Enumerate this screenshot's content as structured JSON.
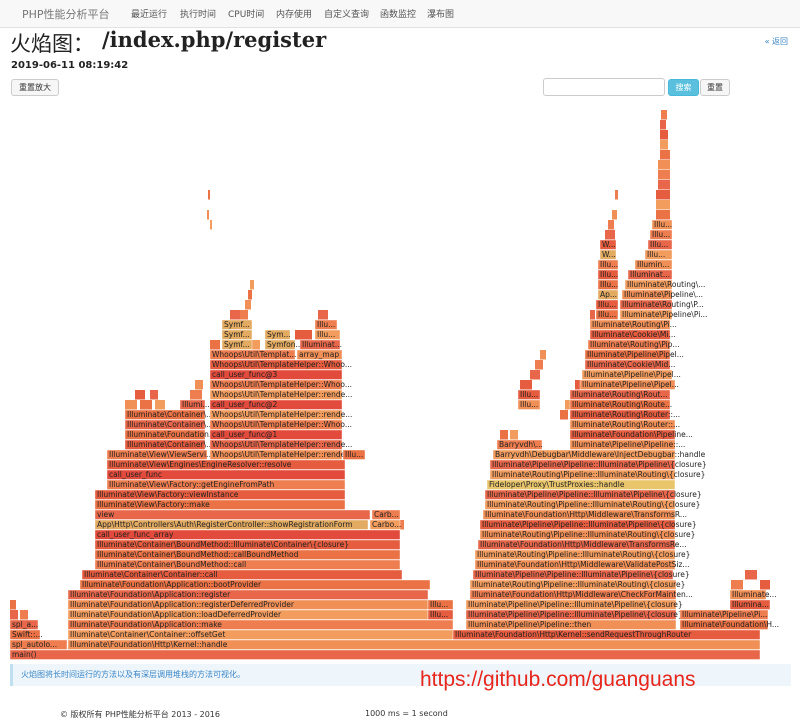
{
  "navbar": {
    "brand": "PHP性能分析平台",
    "items": [
      "最近运行",
      "执行时间",
      "CPU时间",
      "内存使用",
      "自定义查询",
      "函数监控",
      "瀑布图"
    ]
  },
  "header": {
    "title_prefix": "火焰图：",
    "title_path": "/index.php/register",
    "back_link": "« 返回",
    "date": "2019-06-11 08:19:42"
  },
  "toolbar": {
    "zoom_reset": "重置放大",
    "search": "搜索",
    "reset": "重置"
  },
  "flame": {
    "frames": [
      "main()",
      "spl_autolo...",
      "Illuminate\\Foundation\\Http\\Kernel::handle",
      "Swift::...",
      "Illuminate\\Container\\Container::offsetGet",
      "Illuminate\\Foundation\\Http\\Kernel::sendRequestThroughRouter",
      "spl_a...",
      "Illuminate\\Foundation\\Application::make",
      "Illuminate\\Pipeline\\Pipeline::then",
      "Illuminate\\Foundation\\H...",
      "Illuminate\\Foundation\\Application::loadDeferredProvider",
      "Illu...",
      "Illuminate\\Pipeline\\Pipeline::Illuminate\\Pipeline\\{closure}",
      "Illuminate\\Pipeline\\Pi...",
      "Illuminate\\Foundation\\Application::registerDeferredProvider",
      "Illu...",
      "Illuminate\\Pipeline\\Pipeline::Illuminate\\Pipeline\\{closure}",
      "Illumina...",
      "Illuminate\\Foundation\\Application::register",
      "Illuminate\\Foundation\\Http\\Middleware\\CheckForMainten...",
      "Illuminate...",
      "Illuminate\\Foundation\\Application::bootProvider",
      "Illuminate\\Routing\\Pipeline::Illuminate\\Routing\\{closure}",
      "Illuminate\\Container\\Container::call",
      "Illuminate\\Pipeline\\Pipeline::Illuminate\\Pipeline\\{closure}",
      "Illuminate\\Container\\BoundMethod::call",
      "Illuminate\\Foundation\\Http\\Middleware\\ValidatePostSiz...",
      "Illuminate\\Container\\BoundMethod::callBoundMethod",
      "Illuminate\\Routing\\Pipeline::Illuminate\\Routing\\{closure}",
      "Illuminate\\Container\\BoundMethod::Illuminate\\Container\\{closure}",
      "Illuminate\\Foundation\\Http\\Middleware\\TransformsRe...",
      "call_user_func_array",
      "Illuminate\\Routing\\Pipeline::Illuminate\\Routing\\{closure}",
      "App\\Http\\Controllers\\Auth\\RegisterController::showRegistrationForm",
      "Carbo...",
      "Illuminate\\Pipeline\\Pipeline::Illuminate\\Pipeline\\{closure}",
      "view",
      "Carb...",
      "Illuminate\\Foundation\\Http\\Middleware\\TransformsR...",
      "Illuminate\\View\\Factory::make",
      "Illuminate\\Routing\\Pipeline::Illuminate\\Routing\\{closure}",
      "Illuminate\\View\\Factory::viewInstance",
      "Illuminate\\Pipeline\\Pipeline::Illuminate\\Pipeline\\{closure}",
      "Illuminate\\View\\Factory::getEngineFromPath",
      "Fideloper\\Proxy\\TrustProxies::handle",
      "call_user_func",
      "Illuminate\\Routing\\Pipeline::Illuminate\\Routing\\{closure}",
      "Illuminate\\View\\Engines\\EngineResolver::resolve",
      "Illuminate\\Pipeline\\Pipeline::Illuminate\\Pipeline\\{closure}",
      "Illuminate\\View\\ViewServi...",
      "Whoops\\Util\\TemplateHelper::rende...",
      "Illu...",
      "Barryvdh\\Debugbar\\Middleware\\InjectDebugbar::handle",
      "Illuminate\\Container\\...",
      "Whoops\\Util\\TemplateHelper::rende...",
      "Barryvdh\\...",
      "Illuminate\\Pipeline\\Pipeline::...",
      "Illuminate\\Foundation...",
      "call_user_func@1",
      "Illuminate\\Foundation\\Pipeline...",
      "Illuminate\\Container\\...",
      "Whoops\\Util\\TemplateHelper::Whoo...",
      "Illuminate\\Routing\\Router::...",
      "Illuminate\\Container\\...",
      "Whoops\\Util\\TemplateHelper::rende...",
      "Illuminate\\Routing\\Router::...",
      "Illumi...",
      "call_user_func@2",
      "Illu...",
      "Illuminate\\Routing\\Route...",
      "Whoops\\Util\\TemplateHelper::rende...",
      "Illu...",
      "Illuminate\\Routing\\Rout...",
      "Whoops\\Util\\TemplateHelper::Whoo...",
      "Illuminate\\Pipeline\\Pipel...",
      "call_user_func@3",
      "Illuminate\\Pipeline\\Pipel...",
      "Whoops\\Util\\TemplateHelper::Whoo...",
      "Illuminate\\Cookie\\Mid...",
      "Whoops\\Util\\Templat...",
      "array_map",
      "Illuminate\\Pipeline\\Pipel...",
      "Symf...",
      "Symfon...",
      "Illuminat...",
      "Illuminate\\Routing\\Pip...",
      "Symf...",
      "Sym...",
      "Illu...",
      "Illuminate\\Cookie\\Mi...",
      "Symf...",
      "Illu...",
      "Illuminate\\Routing\\Pi...",
      "Illu...",
      "Illuminate\\Pipeline\\Pi...",
      "Illu...",
      "Illuminate\\Routing\\P...",
      "Ap...",
      "Illuminate\\Pipeline\\...",
      "Illu...",
      "Illuminate\\Routing\\...",
      "Illu...",
      "Illuminat...",
      "Illu...",
      "Illumin...",
      "W...",
      "Illu...",
      "W...",
      "Illu...",
      "Illu...",
      "Illu..."
    ]
  },
  "note": "火焰图将长时间运行的方法以及有深层调用堆栈的方法可视化。",
  "watermark": "https://github.com/guanguans",
  "footer": {
    "copyright": "© 版权所有 PHP性能分析平台 2013 - 2016",
    "scale": "1000 ms = 1 second"
  }
}
